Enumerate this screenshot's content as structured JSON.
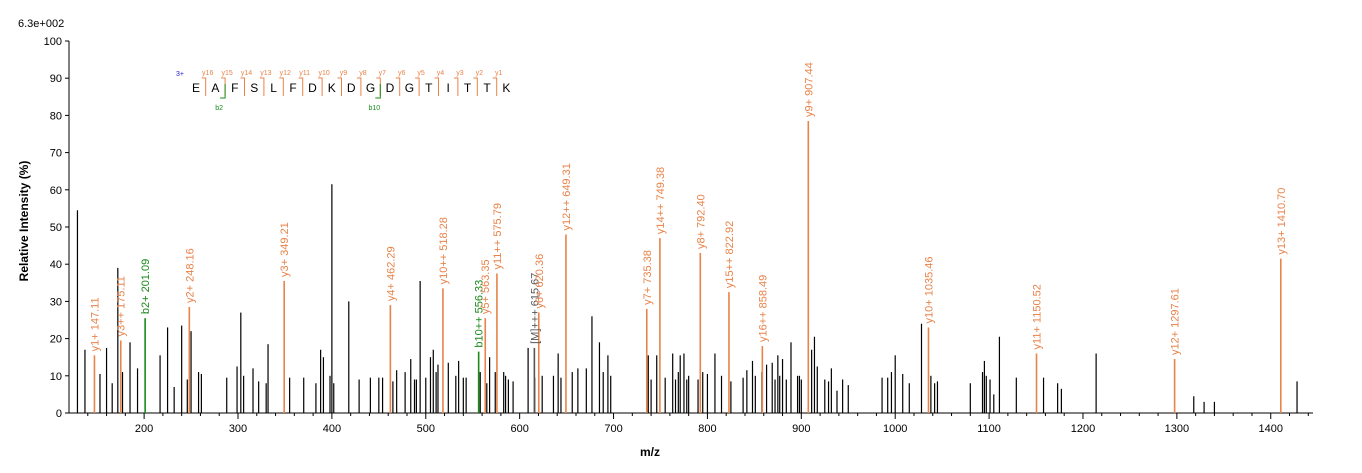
{
  "chart_data": {
    "type": "bar",
    "title": "",
    "scale_label": "6.3e+002",
    "xlabel": "m/z",
    "ylabel": "Relative   Intensity (%)",
    "xlim": [
      120,
      1445
    ],
    "ylim": [
      0,
      100
    ],
    "x_ticks": [
      200,
      300,
      400,
      500,
      600,
      700,
      800,
      900,
      1000,
      1100,
      1200,
      1300,
      1400
    ],
    "y_ticks": [
      0,
      10,
      20,
      30,
      40,
      50,
      60,
      70,
      80,
      90,
      100
    ],
    "colors": {
      "unassigned": "#000000",
      "y_ion": "#E8834A",
      "b_ion": "#1A8A1A",
      "precursor": "#555555",
      "charge": "#1A1ACC",
      "axis": "#000000"
    },
    "peptide": {
      "charge": "3+",
      "sequence": [
        "E",
        "A",
        "F",
        "S",
        "L",
        "F",
        "D",
        "K",
        "D",
        "G",
        "D",
        "G",
        "T",
        "I",
        "T",
        "T",
        "K"
      ],
      "y_ions": [
        "y16",
        "y15",
        "y14",
        "y13",
        "y12",
        "y11",
        "y10",
        "y9",
        "y8",
        "y7",
        "y6",
        "y5",
        "y4",
        "y3",
        "y2",
        "y1"
      ],
      "b_ions": [
        {
          "label": "b2",
          "after": 2
        },
        {
          "label": "b10",
          "after": 10
        }
      ]
    },
    "annotated_peaks": [
      {
        "mz": 147.11,
        "intensity": 15.5,
        "label": "y1+ 147.11",
        "type": "y"
      },
      {
        "mz": 175.11,
        "intensity": 19.5,
        "label": "y3++ 175.11",
        "type": "y"
      },
      {
        "mz": 201.09,
        "intensity": 25.5,
        "label": "b2+ 201.09",
        "type": "b"
      },
      {
        "mz": 248.16,
        "intensity": 28.5,
        "label": "y2+ 248.16",
        "type": "y"
      },
      {
        "mz": 349.21,
        "intensity": 35.5,
        "label": "y3+ 349.21",
        "type": "y"
      },
      {
        "mz": 462.29,
        "intensity": 29.0,
        "label": "y4+ 462.29",
        "type": "y"
      },
      {
        "mz": 518.28,
        "intensity": 33.5,
        "label": "y10++ 518.28",
        "type": "y"
      },
      {
        "mz": 556.33,
        "intensity": 16.5,
        "label": "b10++ 556.33",
        "type": "b"
      },
      {
        "mz": 563.35,
        "intensity": 25.5,
        "label": "y5+ 563.35",
        "type": "y"
      },
      {
        "mz": 575.79,
        "intensity": 37.5,
        "label": "y11++ 575.79",
        "type": "y"
      },
      {
        "mz": 615.67,
        "intensity": 17.5,
        "label": "[M]+++ 615.67",
        "type": "p"
      },
      {
        "mz": 620.36,
        "intensity": 27.0,
        "label": "y6+ 620.36",
        "type": "y"
      },
      {
        "mz": 649.31,
        "intensity": 48.0,
        "label": "y12++ 649.31",
        "type": "y"
      },
      {
        "mz": 735.38,
        "intensity": 28.0,
        "label": "y7+ 735.38",
        "type": "y"
      },
      {
        "mz": 749.38,
        "intensity": 47.0,
        "label": "y14++ 749.38",
        "type": "y"
      },
      {
        "mz": 792.4,
        "intensity": 43.0,
        "label": "y8+ 792.40",
        "type": "y"
      },
      {
        "mz": 822.92,
        "intensity": 32.5,
        "label": "y15++ 822.92",
        "type": "y"
      },
      {
        "mz": 858.49,
        "intensity": 18.0,
        "label": "y16++ 858.49",
        "type": "y"
      },
      {
        "mz": 907.44,
        "intensity": 78.5,
        "label": "y9+ 907.44",
        "type": "y"
      },
      {
        "mz": 1035.46,
        "intensity": 23.0,
        "label": "y10+ 1035.46",
        "type": "y"
      },
      {
        "mz": 1150.52,
        "intensity": 16.0,
        "label": "y11+ 1150.52",
        "type": "y"
      },
      {
        "mz": 1297.61,
        "intensity": 14.5,
        "label": "y12+ 1297.61",
        "type": "y"
      },
      {
        "mz": 1410.7,
        "intensity": 41.5,
        "label": "y13+ 1410.70",
        "type": "y"
      }
    ],
    "unassigned_peaks": [
      [
        129,
        54.5
      ],
      [
        137,
        17
      ],
      [
        153,
        10.5
      ],
      [
        160,
        17.5
      ],
      [
        166,
        8
      ],
      [
        172,
        39
      ],
      [
        177,
        11
      ],
      [
        185,
        19
      ],
      [
        193,
        12
      ],
      [
        217,
        15.5
      ],
      [
        225,
        23
      ],
      [
        232,
        7
      ],
      [
        240,
        23.5
      ],
      [
        246,
        9
      ],
      [
        250,
        22
      ],
      [
        258,
        11
      ],
      [
        261,
        10.5
      ],
      [
        288,
        9.5
      ],
      [
        299,
        12.5
      ],
      [
        303,
        27
      ],
      [
        306,
        10
      ],
      [
        316,
        12
      ],
      [
        322,
        8.5
      ],
      [
        330,
        8
      ],
      [
        332,
        18.5
      ],
      [
        355,
        9.5
      ],
      [
        370,
        9.5
      ],
      [
        383,
        8
      ],
      [
        388,
        17
      ],
      [
        391,
        15
      ],
      [
        398,
        10
      ],
      [
        400,
        61.5
      ],
      [
        402,
        8
      ],
      [
        418,
        30
      ],
      [
        429,
        9
      ],
      [
        441,
        9.5
      ],
      [
        450,
        9.5
      ],
      [
        454,
        9.5
      ],
      [
        465,
        8.5
      ],
      [
        469,
        11.5
      ],
      [
        478,
        11
      ],
      [
        484,
        14.5
      ],
      [
        488,
        9
      ],
      [
        490,
        9
      ],
      [
        494,
        35.5
      ],
      [
        500,
        9.5
      ],
      [
        505,
        15
      ],
      [
        508,
        17
      ],
      [
        511,
        11
      ],
      [
        513,
        13
      ],
      [
        524,
        13.5
      ],
      [
        532,
        10
      ],
      [
        535,
        14
      ],
      [
        540,
        9.5
      ],
      [
        543,
        9.5
      ],
      [
        558,
        11
      ],
      [
        565,
        8
      ],
      [
        568,
        15
      ],
      [
        574,
        11
      ],
      [
        583,
        11
      ],
      [
        585,
        10
      ],
      [
        588,
        9
      ],
      [
        593,
        8.5
      ],
      [
        609,
        17.5
      ],
      [
        616,
        9.5
      ],
      [
        624,
        10
      ],
      [
        636,
        10
      ],
      [
        641,
        16
      ],
      [
        644,
        9.5
      ],
      [
        656,
        11
      ],
      [
        662,
        12
      ],
      [
        671,
        12
      ],
      [
        677,
        26
      ],
      [
        685,
        19
      ],
      [
        689,
        11
      ],
      [
        694,
        15.5
      ],
      [
        697,
        10
      ],
      [
        737,
        15.5
      ],
      [
        740,
        9
      ],
      [
        746,
        15.5
      ],
      [
        755,
        9.5
      ],
      [
        763,
        16
      ],
      [
        766,
        9
      ],
      [
        769,
        11
      ],
      [
        771,
        15.5
      ],
      [
        775,
        16
      ],
      [
        778,
        9
      ],
      [
        780,
        10
      ],
      [
        790,
        9
      ],
      [
        795,
        11
      ],
      [
        800,
        10.5
      ],
      [
        808,
        16
      ],
      [
        815,
        10
      ],
      [
        825,
        8.5
      ],
      [
        838,
        9.5
      ],
      [
        842,
        11.5
      ],
      [
        848,
        14
      ],
      [
        851,
        10
      ],
      [
        858,
        11
      ],
      [
        863,
        13
      ],
      [
        869,
        13.5
      ],
      [
        872,
        9
      ],
      [
        875,
        15.5
      ],
      [
        877,
        10
      ],
      [
        880,
        14.5
      ],
      [
        884,
        9
      ],
      [
        889,
        19
      ],
      [
        896,
        10
      ],
      [
        898,
        10
      ],
      [
        900,
        9
      ],
      [
        911,
        17
      ],
      [
        914,
        20.5
      ],
      [
        917,
        12.5
      ],
      [
        925,
        9
      ],
      [
        929,
        8.5
      ],
      [
        932,
        12
      ],
      [
        938,
        6
      ],
      [
        944,
        9
      ],
      [
        950,
        7.5
      ],
      [
        986,
        9.5
      ],
      [
        992,
        9.5
      ],
      [
        996,
        11
      ],
      [
        1000,
        15.5
      ],
      [
        1008,
        10.5
      ],
      [
        1015,
        8
      ],
      [
        1028,
        24
      ],
      [
        1038,
        10
      ],
      [
        1042,
        8
      ],
      [
        1045,
        8.5
      ],
      [
        1080,
        8
      ],
      [
        1093,
        11
      ],
      [
        1095,
        14
      ],
      [
        1097,
        10
      ],
      [
        1101,
        9
      ],
      [
        1105,
        5
      ],
      [
        1111,
        20.5
      ],
      [
        1129,
        9.5
      ],
      [
        1158,
        9.5
      ],
      [
        1173,
        8
      ],
      [
        1177,
        6.5
      ],
      [
        1214,
        16
      ],
      [
        1318,
        4.5
      ],
      [
        1329,
        3
      ],
      [
        1340,
        3
      ],
      [
        1428,
        8.5
      ]
    ]
  }
}
